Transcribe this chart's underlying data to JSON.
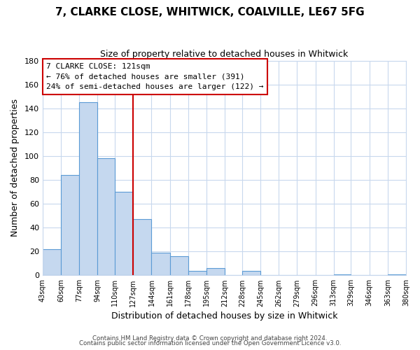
{
  "title_line1": "7, CLARKE CLOSE, WHITWICK, COALVILLE, LE67 5FG",
  "title_line2": "Size of property relative to detached houses in Whitwick",
  "xlabel": "Distribution of detached houses by size in Whitwick",
  "ylabel": "Number of detached properties",
  "bar_edges": [
    43,
    60,
    77,
    94,
    110,
    127,
    144,
    161,
    178,
    195,
    212,
    228,
    245,
    262,
    279,
    296,
    313,
    329,
    346,
    363,
    380
  ],
  "bar_heights": [
    22,
    84,
    145,
    98,
    70,
    47,
    19,
    16,
    4,
    6,
    0,
    4,
    0,
    0,
    0,
    0,
    1,
    0,
    0,
    1
  ],
  "tick_labels": [
    "43sqm",
    "60sqm",
    "77sqm",
    "94sqm",
    "110sqm",
    "127sqm",
    "144sqm",
    "161sqm",
    "178sqm",
    "195sqm",
    "212sqm",
    "228sqm",
    "245sqm",
    "262sqm",
    "279sqm",
    "296sqm",
    "313sqm",
    "329sqm",
    "346sqm",
    "363sqm",
    "380sqm"
  ],
  "bar_color": "#c5d8ef",
  "bar_edge_color": "#5b9bd5",
  "reference_line_x": 127,
  "reference_line_color": "#cc0000",
  "ylim": [
    0,
    180
  ],
  "yticks": [
    0,
    20,
    40,
    60,
    80,
    100,
    120,
    140,
    160,
    180
  ],
  "annotation_title": "7 CLARKE CLOSE: 121sqm",
  "annotation_line1": "← 76% of detached houses are smaller (391)",
  "annotation_line2": "24% of semi-detached houses are larger (122) →",
  "annotation_box_color": "#ffffff",
  "annotation_box_edge_color": "#cc0000",
  "footer_line1": "Contains HM Land Registry data © Crown copyright and database right 2024.",
  "footer_line2": "Contains public sector information licensed under the Open Government Licence v3.0.",
  "background_color": "#ffffff",
  "grid_color": "#c8d8ed"
}
